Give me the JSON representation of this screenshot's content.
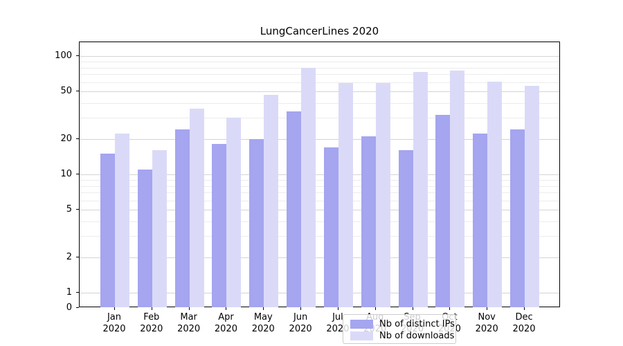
{
  "chart_data": {
    "type": "bar",
    "title": "LungCancerLines 2020",
    "yscale": "symlog",
    "ylim": [
      0,
      131
    ],
    "grid": true,
    "legend_position": "lower center",
    "y_major_ticks": [
      100,
      50,
      20,
      10,
      5,
      2,
      1,
      0
    ],
    "y_minor_ticks": [
      3,
      4,
      6,
      7,
      8,
      9,
      30,
      40,
      60,
      70,
      80,
      90
    ],
    "categories": [
      "Jan 2020",
      "Feb 2020",
      "Mar 2020",
      "Apr 2020",
      "May 2020",
      "Jun 2020",
      "Jul 2020",
      "Aug 2020",
      "Sep 2020",
      "Oct 2020",
      "Nov 2020",
      "Dec 2020"
    ],
    "x_tick_labels": [
      {
        "month": "Jan",
        "year": "2020"
      },
      {
        "month": "Feb",
        "year": "2020"
      },
      {
        "month": "Mar",
        "year": "2020"
      },
      {
        "month": "Apr",
        "year": "2020"
      },
      {
        "month": "May",
        "year": "2020"
      },
      {
        "month": "Jun",
        "year": "2020"
      },
      {
        "month": "Jul",
        "year": "2020"
      },
      {
        "month": "Aug",
        "year": "2020"
      },
      {
        "month": "Sep",
        "year": "2020"
      },
      {
        "month": "Oct",
        "year": "2020"
      },
      {
        "month": "Nov",
        "year": "2020"
      },
      {
        "month": "Dec",
        "year": "2020"
      }
    ],
    "series": [
      {
        "name": "Nb of distinct IPs",
        "color": "#a5a5f0",
        "values": [
          15,
          11,
          24,
          18,
          20,
          34,
          17,
          21,
          16,
          32,
          22,
          24
        ]
      },
      {
        "name": "Nb of downloads",
        "color": "#dadaf8",
        "values": [
          22,
          16,
          36,
          30,
          47,
          80,
          59,
          59,
          73,
          75,
          61,
          56
        ]
      }
    ]
  },
  "colors": {
    "grid_major": "#d4d4d4",
    "grid_minor": "#ececec",
    "spine": "#000000",
    "background": "#ffffff",
    "legend_border": "#cccccc"
  }
}
